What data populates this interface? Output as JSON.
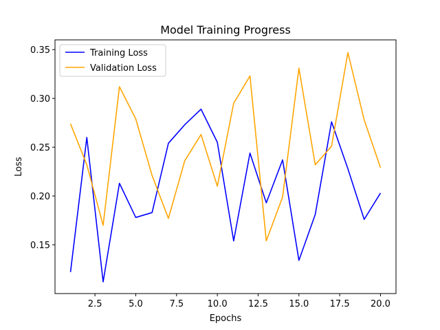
{
  "chart_data": {
    "type": "line",
    "title": "Model Training Progress",
    "xlabel": "Epochs",
    "ylabel": "Loss",
    "xlim": [
      0.05,
      20.95
    ],
    "ylim": [
      0.1,
      0.36
    ],
    "xticks": [
      2.5,
      5.0,
      7.5,
      10.0,
      12.5,
      15.0,
      17.5,
      20.0
    ],
    "xtick_labels": [
      "2.5",
      "5.0",
      "7.5",
      "10.0",
      "12.5",
      "15.0",
      "17.5",
      "20.0"
    ],
    "yticks": [
      0.15,
      0.2,
      0.25,
      0.3,
      0.35
    ],
    "ytick_labels": [
      "0.15",
      "0.20",
      "0.25",
      "0.30",
      "0.35"
    ],
    "grid": false,
    "legend_position": "top-left",
    "x": [
      1,
      2,
      3,
      4,
      5,
      6,
      7,
      8,
      9,
      10,
      11,
      12,
      13,
      14,
      15,
      16,
      17,
      18,
      19,
      20
    ],
    "series": [
      {
        "name": "Training Loss",
        "color": "#0000ff",
        "values": [
          0.122,
          0.26,
          0.112,
          0.213,
          0.178,
          0.183,
          0.254,
          0.273,
          0.289,
          0.255,
          0.154,
          0.244,
          0.193,
          0.237,
          0.134,
          0.181,
          0.276,
          0.228,
          0.176,
          0.203
        ]
      },
      {
        "name": "Validation Loss",
        "color": "#ffa500",
        "values": [
          0.274,
          0.232,
          0.17,
          0.312,
          0.279,
          0.221,
          0.177,
          0.236,
          0.263,
          0.21,
          0.295,
          0.323,
          0.154,
          0.199,
          0.331,
          0.232,
          0.251,
          0.347,
          0.278,
          0.229
        ]
      }
    ]
  }
}
